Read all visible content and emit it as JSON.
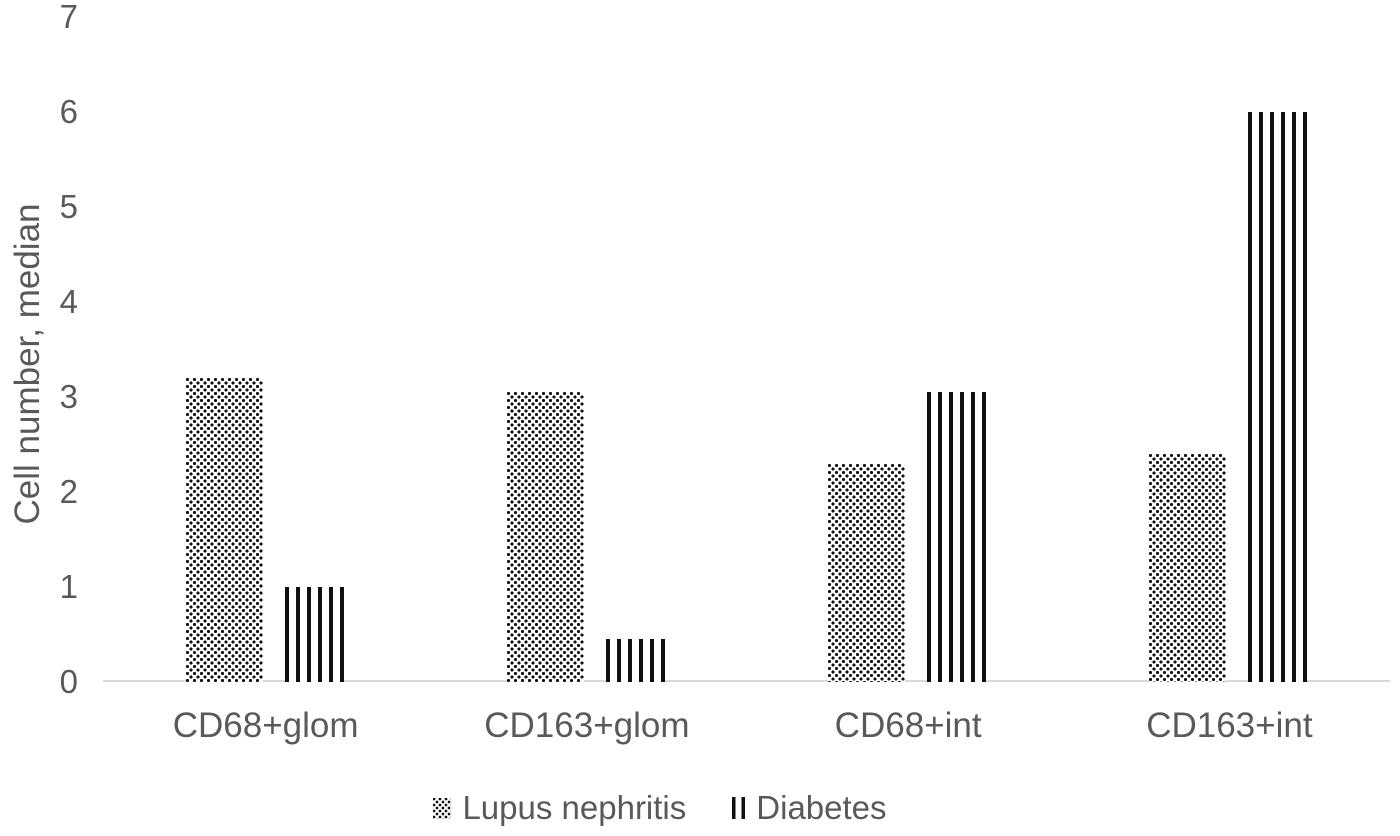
{
  "chart_data": {
    "type": "bar",
    "title": "",
    "xlabel": "",
    "ylabel": "Cell number, median",
    "categories": [
      "CD68+glom",
      "CD163+glom",
      "CD68+int",
      "CD163+int"
    ],
    "series": [
      {
        "name": "Lupus nephritis",
        "pattern": "dots",
        "values": [
          3.2,
          3.05,
          2.3,
          2.4
        ]
      },
      {
        "name": "Diabetes",
        "pattern": "vertical-stripes",
        "values": [
          1.0,
          0.45,
          3.05,
          6.0
        ]
      }
    ],
    "ylim": [
      0,
      7
    ],
    "yticks": [
      0,
      1,
      2,
      3,
      4,
      5,
      6,
      7
    ],
    "grid": false,
    "legend_position": "bottom",
    "colors": {
      "bar_pattern": "#000000",
      "text": "#595959",
      "axis_line": "#d9d9d9",
      "background": "#ffffff"
    }
  }
}
